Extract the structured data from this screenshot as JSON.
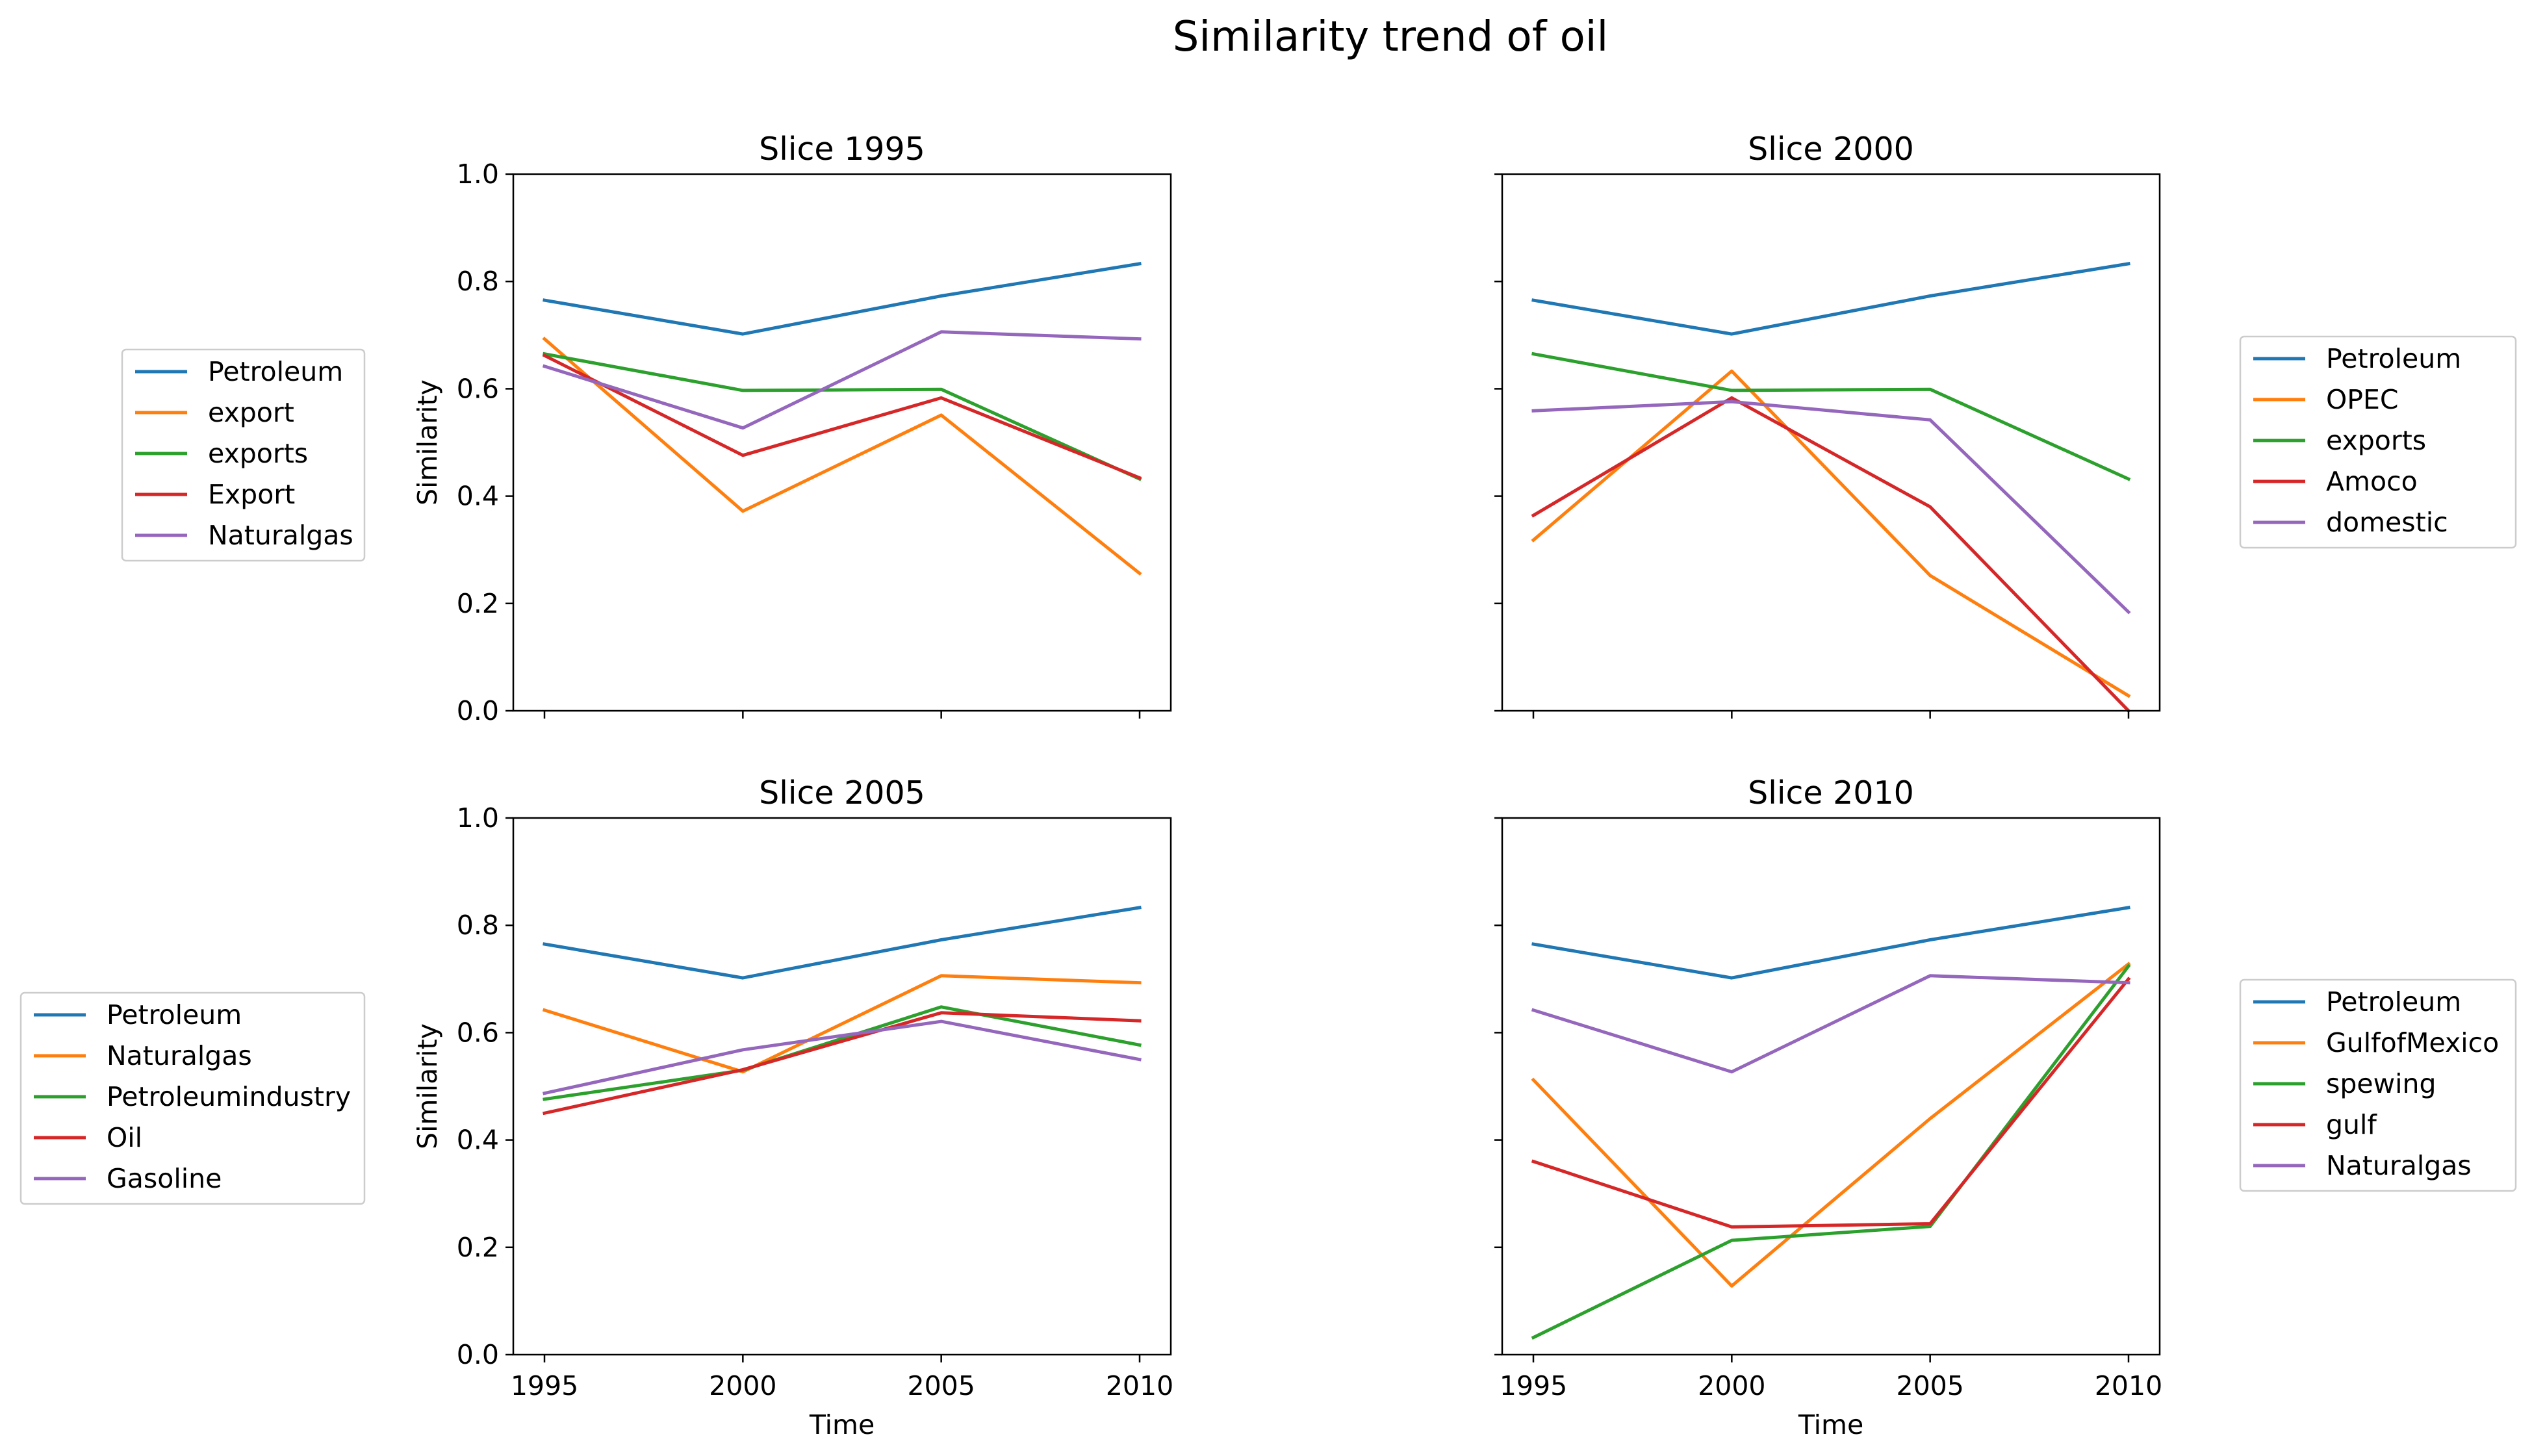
{
  "figure": {
    "title": "Similarity trend of oil"
  },
  "colors": {
    "c0": "#1f77b4",
    "c1": "#ff7f0e",
    "c2": "#2ca02c",
    "c3": "#d62728",
    "c4": "#9467bd"
  },
  "chart_data": [
    {
      "type": "line",
      "title": "Slice 1995",
      "xlabel": "",
      "ylabel": "Similarity",
      "x": [
        1995,
        2000,
        2005,
        2010
      ],
      "xticks": [
        "",
        "",
        "",
        ""
      ],
      "yticks": [
        "0.0",
        "0.2",
        "0.4",
        "0.6",
        "0.8",
        "1.0"
      ],
      "ylim": [
        0,
        1
      ],
      "legend_position": "left",
      "series": [
        {
          "name": "Petroleum",
          "values": [
            0.765,
            0.702,
            0.773,
            0.833
          ]
        },
        {
          "name": "export",
          "values": [
            0.693,
            0.372,
            0.551,
            0.256
          ]
        },
        {
          "name": "exports",
          "values": [
            0.665,
            0.597,
            0.599,
            0.432
          ]
        },
        {
          "name": "Export",
          "values": [
            0.662,
            0.476,
            0.583,
            0.434
          ]
        },
        {
          "name": "Naturalgas",
          "values": [
            0.642,
            0.527,
            0.706,
            0.693
          ]
        }
      ]
    },
    {
      "type": "line",
      "title": "Slice 2000",
      "xlabel": "",
      "ylabel": "",
      "x": [
        1995,
        2000,
        2005,
        2010
      ],
      "xticks": [
        "",
        "",
        "",
        ""
      ],
      "yticks": [
        "",
        "",
        "",
        "",
        "",
        ""
      ],
      "ylim": [
        0,
        1
      ],
      "legend_position": "right",
      "series": [
        {
          "name": "Petroleum",
          "values": [
            0.765,
            0.702,
            0.773,
            0.833
          ]
        },
        {
          "name": "OPEC",
          "values": [
            0.318,
            0.633,
            0.252,
            0.028
          ]
        },
        {
          "name": "exports",
          "values": [
            0.665,
            0.597,
            0.599,
            0.432
          ]
        },
        {
          "name": "Amoco",
          "values": [
            0.364,
            0.583,
            0.38,
            0.0
          ]
        },
        {
          "name": "domestic",
          "values": [
            0.559,
            0.576,
            0.542,
            0.184
          ]
        }
      ]
    },
    {
      "type": "line",
      "title": "Slice 2005",
      "xlabel": "Time",
      "ylabel": "Similarity",
      "x": [
        1995,
        2000,
        2005,
        2010
      ],
      "xticks": [
        "1995",
        "2000",
        "2005",
        "2010"
      ],
      "yticks": [
        "0.0",
        "0.2",
        "0.4",
        "0.6",
        "0.8",
        "1.0"
      ],
      "ylim": [
        0,
        1
      ],
      "legend_position": "left",
      "series": [
        {
          "name": "Petroleum",
          "values": [
            0.765,
            0.702,
            0.773,
            0.833
          ]
        },
        {
          "name": "Naturalgas",
          "values": [
            0.642,
            0.527,
            0.706,
            0.693
          ]
        },
        {
          "name": "Petroleumindustry",
          "values": [
            0.476,
            0.53,
            0.648,
            0.577
          ]
        },
        {
          "name": "Oil",
          "values": [
            0.45,
            0.531,
            0.637,
            0.622
          ]
        },
        {
          "name": "Gasoline",
          "values": [
            0.487,
            0.568,
            0.621,
            0.55
          ]
        }
      ]
    },
    {
      "type": "line",
      "title": "Slice 2010",
      "xlabel": "Time",
      "ylabel": "",
      "x": [
        1995,
        2000,
        2005,
        2010
      ],
      "xticks": [
        "1995",
        "2000",
        "2005",
        "2010"
      ],
      "yticks": [
        "",
        "",
        "",
        "",
        "",
        ""
      ],
      "ylim": [
        0,
        1
      ],
      "legend_position": "right",
      "series": [
        {
          "name": "Petroleum",
          "values": [
            0.765,
            0.702,
            0.773,
            0.833
          ]
        },
        {
          "name": "GulfofMexico",
          "values": [
            0.512,
            0.128,
            0.44,
            0.728
          ]
        },
        {
          "name": "spewing",
          "values": [
            0.032,
            0.213,
            0.239,
            0.724
          ]
        },
        {
          "name": "gulf",
          "values": [
            0.36,
            0.238,
            0.244,
            0.7
          ]
        },
        {
          "name": "Naturalgas",
          "values": [
            0.642,
            0.527,
            0.706,
            0.693
          ]
        }
      ]
    }
  ]
}
